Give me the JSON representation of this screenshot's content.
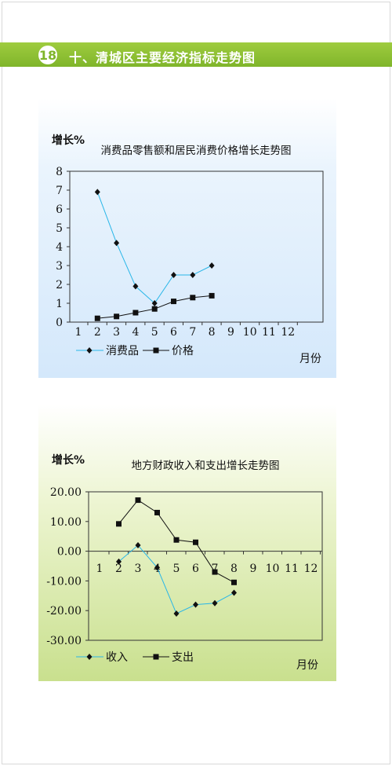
{
  "header": {
    "number": "18",
    "title": "十、清城区主要经济指标走势图"
  },
  "chart_data": [
    {
      "type": "line",
      "title": "消费品零售额和居民消费价格增长走势图",
      "ylabel": "增长%",
      "xlabel": "月份",
      "x": [
        1,
        2,
        3,
        4,
        5,
        6,
        7,
        8,
        9,
        10,
        11,
        12
      ],
      "ylim": [
        0,
        8
      ],
      "yticks": [
        "0",
        "1",
        "2",
        "3",
        "4",
        "5",
        "6",
        "7",
        "8"
      ],
      "series": [
        {
          "name": "消费品",
          "marker": "diamond",
          "color": "#29b6e8",
          "points": [
            [
              2,
              6.9
            ],
            [
              3,
              4.2
            ],
            [
              4,
              1.9
            ],
            [
              5,
              1.0
            ],
            [
              6,
              2.5
            ],
            [
              7,
              2.5
            ],
            [
              8,
              3.0
            ]
          ]
        },
        {
          "name": "价格",
          "marker": "square",
          "color": "#111111",
          "points": [
            [
              2,
              0.2
            ],
            [
              3,
              0.3
            ],
            [
              4,
              0.5
            ],
            [
              5,
              0.7
            ],
            [
              6,
              1.1
            ],
            [
              7,
              1.3
            ],
            [
              8,
              1.4
            ]
          ]
        }
      ],
      "legend": "bottom"
    },
    {
      "type": "line",
      "title": "地方财政收入和支出增长走势图",
      "ylabel": "增长%",
      "xlabel": "月份",
      "x": [
        1,
        2,
        3,
        4,
        5,
        6,
        7,
        8,
        9,
        10,
        11,
        12
      ],
      "ylim": [
        -30,
        20
      ],
      "yticks": [
        "20.00",
        "10.00",
        "0.00",
        "-10.00",
        "-20.00",
        "-30.00"
      ],
      "series": [
        {
          "name": "收入",
          "marker": "diamond",
          "color": "#29b6e8",
          "points": [
            [
              2,
              -3.5
            ],
            [
              3,
              2.0
            ],
            [
              4,
              -5.5
            ],
            [
              5,
              -21.0
            ],
            [
              6,
              -18.0
            ],
            [
              7,
              -17.5
            ],
            [
              8,
              -14.0
            ]
          ]
        },
        {
          "name": "支出",
          "marker": "square",
          "color": "#111111",
          "points": [
            [
              2,
              9.2
            ],
            [
              3,
              17.2
            ],
            [
              4,
              13.0
            ],
            [
              5,
              3.8
            ],
            [
              6,
              3.0
            ],
            [
              7,
              -7.0
            ],
            [
              8,
              -10.5
            ]
          ]
        }
      ],
      "legend": "bottom"
    }
  ]
}
